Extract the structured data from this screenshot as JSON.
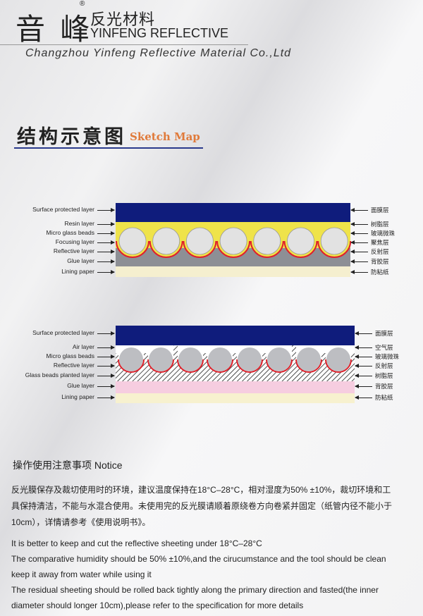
{
  "header": {
    "logo_cn": "音 峰",
    "registered_mark": "®",
    "brand_cn": "反光材料",
    "brand_en": "YINFENG REFLECTIVE",
    "company": "Changzhou Yinfeng Reflective Material Co.,Ltd"
  },
  "section": {
    "title_cn": "结构示意图",
    "title_en": "Sketch Map"
  },
  "diagram1": {
    "left_labels": [
      "Surface protected layer",
      "Resin  layer",
      "Micro glass beads",
      "Focusing layer",
      "Reflective layer",
      "Glue layer",
      "Lining paper"
    ],
    "right_labels": [
      "面膜层",
      "树脂层",
      "玻璃微珠",
      "聚焦层",
      "反射层",
      "背胶层",
      "防粘纸"
    ],
    "colors": {
      "surface": "#0f1c7c",
      "resin": "#efe34a",
      "beads": "#e2e2e2",
      "reflective": "#e0202a",
      "glue": "#8d8f95",
      "lining": "#f5efcf"
    }
  },
  "diagram2": {
    "left_labels": [
      "Surface protected layer",
      "Air layer",
      "Micro glass beads",
      "Reflective layer",
      "Glass beads planted layer",
      "Glue layer",
      "Lining paper"
    ],
    "right_labels": [
      "面膜层",
      "空气层",
      "玻璃微珠",
      "反射层",
      "树脂层",
      "背胶层",
      "防粘纸"
    ],
    "colors": {
      "surface": "#0f1c7c",
      "beads": "#bdbec2",
      "reflective": "#e0202a",
      "glue": "#f6cde0",
      "lining": "#f7f1cf"
    }
  },
  "notice": {
    "title": "操作使用注意事项  Notice",
    "cn_lines": [
      "反光膜保存及裁切使用时的环境，建议温度保持在18°C–28°C，相对湿度为50% ±10%，裁切环境和工",
      "具保持清洁，不能与水混合使用。未使用完的反光膜请顺着原绕卷方向卷紧并固定（纸管内径不能小于",
      "10cm），详情请参考《使用说明书》。"
    ],
    "en_lines": [
      "It is better to keep and cut the reflective sheeting under 18°C–28°C",
      "The comparative humidity should be 50% ±10%,and the cirucumstance and the tool should be clean",
      "keep it away from water while using it",
      "The residual sheeting should be rolled back tightly along the primary direction and fasted(the inner",
      "diameter should longer 10cm),please refer to the specification for more details"
    ]
  }
}
